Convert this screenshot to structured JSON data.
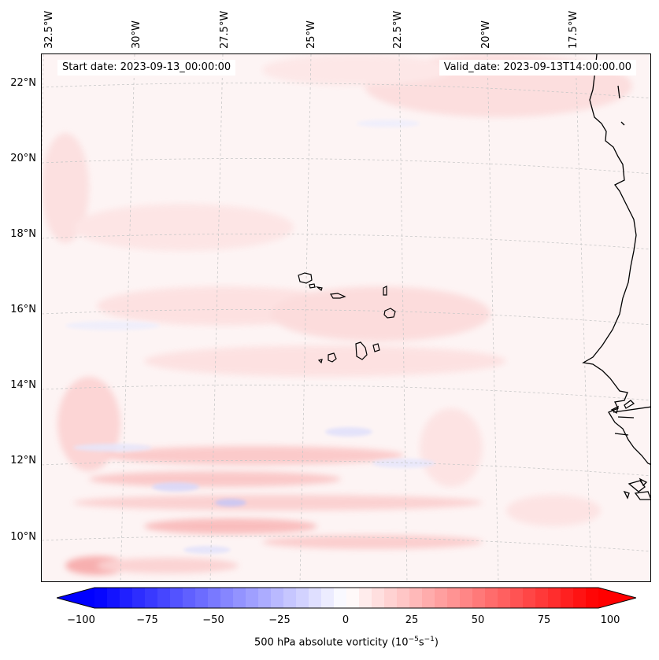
{
  "map": {
    "start_date": "Start date: 2023-09-13_00:00:00",
    "valid_date": "Valid_date: 2023-09-13T14:00:00.00",
    "lon_labels": [
      "32.5°W",
      "30°W",
      "27.5°W",
      "25°W",
      "22.5°W",
      "20°W",
      "17.5°W"
    ],
    "lat_labels": [
      "22°N",
      "20°N",
      "18°N",
      "16°N",
      "14°N",
      "12°N",
      "10°N"
    ],
    "coastline_color": "#000000",
    "gridline_color": "#c8c8c8"
  },
  "colorbar": {
    "ticks": [
      "−100",
      "−75",
      "−50",
      "−25",
      "0",
      "25",
      "50",
      "75",
      "100"
    ],
    "min": -100,
    "max": 100,
    "low_color": "#0000ff",
    "mid_color": "#ffffff",
    "high_color": "#ff0000",
    "label": "500 hPa absolute vorticity (10",
    "label_exp1": "−5",
    "label_mid": "s",
    "label_exp2": "−1",
    "label_end": ")"
  }
}
